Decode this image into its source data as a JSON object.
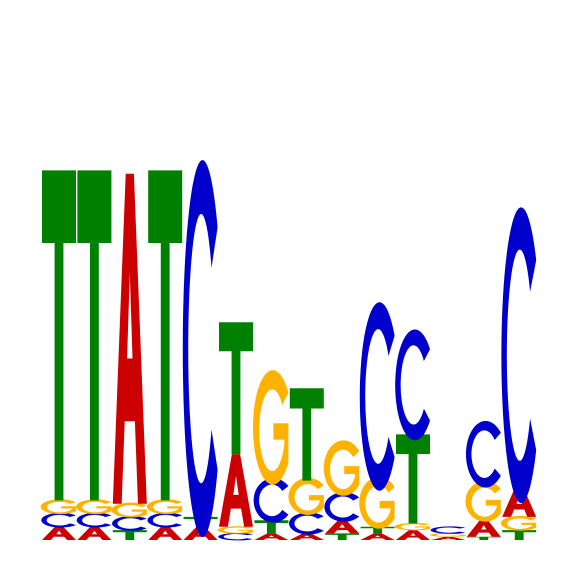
{
  "logo": {
    "colors": {
      "A": "#cc0000",
      "C": "#0000cc",
      "G": "#ffb300",
      "T": "#008000"
    },
    "positions": [
      {
        "stack": [
          {
            "base": "A",
            "height": 0.04
          },
          {
            "base": "C",
            "height": 0.04
          },
          {
            "base": "G",
            "height": 0.04
          },
          {
            "base": "T",
            "height": 1.0
          }
        ]
      },
      {
        "stack": [
          {
            "base": "A",
            "height": 0.04
          },
          {
            "base": "C",
            "height": 0.04
          },
          {
            "base": "G",
            "height": 0.04
          },
          {
            "base": "T",
            "height": 1.0
          }
        ]
      },
      {
        "stack": [
          {
            "base": "T",
            "height": 0.03
          },
          {
            "base": "C",
            "height": 0.04
          },
          {
            "base": "G",
            "height": 0.04
          },
          {
            "base": "A",
            "height": 1.0
          }
        ]
      },
      {
        "stack": [
          {
            "base": "A",
            "height": 0.04
          },
          {
            "base": "C",
            "height": 0.04
          },
          {
            "base": "G",
            "height": 0.04
          },
          {
            "base": "T",
            "height": 1.0
          }
        ]
      },
      {
        "stack": [
          {
            "base": "A",
            "height": 0.04
          },
          {
            "base": "T",
            "height": 0.03
          },
          {
            "base": "C",
            "height": 1.02
          }
        ]
      },
      {
        "stack": [
          {
            "base": "C",
            "height": 0.02
          },
          {
            "base": "G",
            "height": 0.02
          },
          {
            "base": "A",
            "height": 0.22
          },
          {
            "base": "T",
            "height": 0.4
          }
        ]
      },
      {
        "stack": [
          {
            "base": "A",
            "height": 0.02
          },
          {
            "base": "T",
            "height": 0.04
          },
          {
            "base": "C",
            "height": 0.12
          },
          {
            "base": "G",
            "height": 0.31
          }
        ]
      },
      {
        "stack": [
          {
            "base": "A",
            "height": 0.02
          },
          {
            "base": "C",
            "height": 0.06
          },
          {
            "base": "G",
            "height": 0.1
          },
          {
            "base": "T",
            "height": 0.28
          }
        ]
      },
      {
        "stack": [
          {
            "base": "T",
            "height": 0.02
          },
          {
            "base": "A",
            "height": 0.04
          },
          {
            "base": "C",
            "height": 0.08
          },
          {
            "base": "G",
            "height": 0.15
          }
        ]
      },
      {
        "stack": [
          {
            "base": "A",
            "height": 0.02
          },
          {
            "base": "T",
            "height": 0.02
          },
          {
            "base": "G",
            "height": 0.14
          },
          {
            "base": "C",
            "height": 0.51
          }
        ]
      },
      {
        "stack": [
          {
            "base": "A",
            "height": 0.03
          },
          {
            "base": "G",
            "height": 0.02
          },
          {
            "base": "T",
            "height": 0.27
          },
          {
            "base": "C",
            "height": 0.3
          }
        ]
      },
      {
        "stack": [
          {
            "base": "A",
            "height": 0.01
          },
          {
            "base": "G",
            "height": 0.01
          },
          {
            "base": "C",
            "height": 0.02
          }
        ]
      },
      {
        "stack": [
          {
            "base": "T",
            "height": 0.01
          },
          {
            "base": "A",
            "height": 0.05
          },
          {
            "base": "G",
            "height": 0.11
          },
          {
            "base": "C",
            "height": 0.18
          }
        ]
      },
      {
        "stack": [
          {
            "base": "T",
            "height": 0.03
          },
          {
            "base": "G",
            "height": 0.04
          },
          {
            "base": "A",
            "height": 0.09
          },
          {
            "base": "C",
            "height": 0.8
          }
        ]
      }
    ]
  }
}
